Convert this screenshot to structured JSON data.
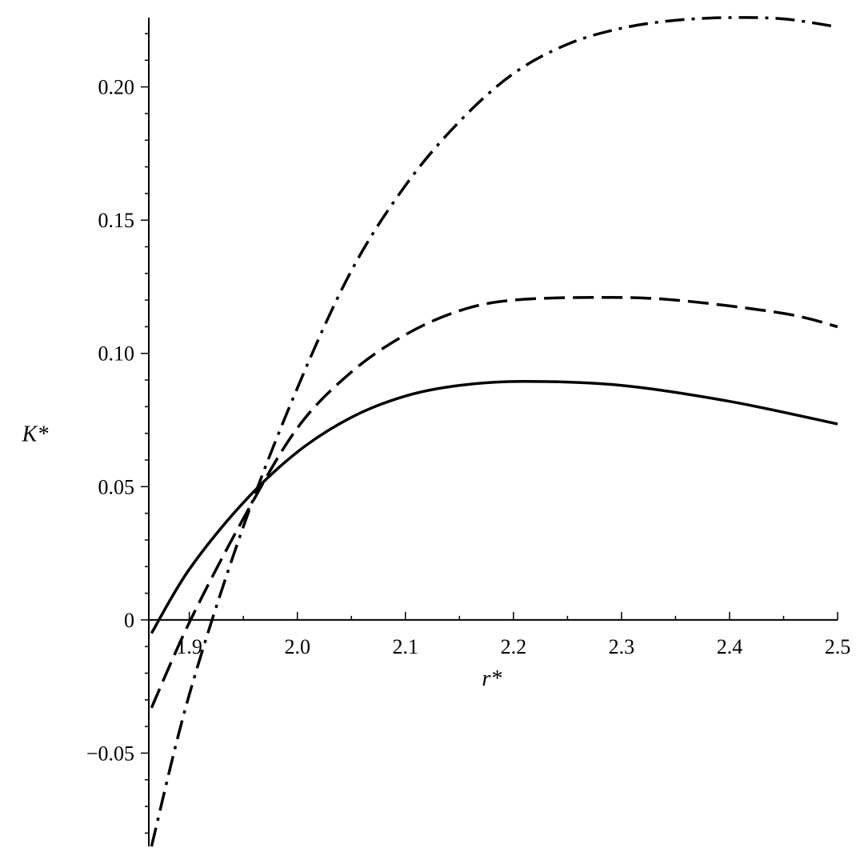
{
  "chart_data": {
    "type": "line",
    "xlabel": "r*",
    "ylabel": "K*",
    "xlim": [
      1.8625,
      2.5
    ],
    "ylim": [
      -0.085,
      0.226
    ],
    "x_ticks": [
      1.9,
      2.0,
      2.1,
      2.2,
      2.3,
      2.4,
      2.5
    ],
    "x_tick_labels": [
      "1.9",
      "2.0",
      "2.1",
      "2.2",
      "2.3",
      "2.4",
      "2.5"
    ],
    "y_ticks": [
      -0.05,
      0,
      0.05,
      0.1,
      0.15,
      0.2
    ],
    "y_tick_labels": [
      "−0.05",
      "0",
      "0.05",
      "0.10",
      "0.15",
      "0.20"
    ],
    "grid": false,
    "legend": "none",
    "series": [
      {
        "style": "solid",
        "x": [
          1.865,
          1.9,
          1.95,
          2.0,
          2.05,
          2.1,
          2.15,
          2.21,
          2.3,
          2.4,
          2.5
        ],
        "y": [
          -0.005,
          0.019,
          0.044,
          0.063,
          0.076,
          0.084,
          0.088,
          0.0895,
          0.088,
          0.082,
          0.0735
        ]
      },
      {
        "style": "dashed",
        "x": [
          1.865,
          1.9,
          1.95,
          2.0,
          2.05,
          2.1,
          2.15,
          2.2,
          2.28,
          2.35,
          2.45,
          2.5
        ],
        "y": [
          -0.033,
          -0.001,
          0.038,
          0.072,
          0.093,
          0.107,
          0.116,
          0.12,
          0.121,
          0.12,
          0.115,
          0.11
        ]
      },
      {
        "style": "dashdot",
        "x": [
          1.865,
          1.9,
          1.95,
          2.0,
          2.05,
          2.1,
          2.15,
          2.2,
          2.25,
          2.3,
          2.35,
          2.4,
          2.45,
          2.5
        ],
        "y": [
          -0.085,
          -0.028,
          0.035,
          0.087,
          0.131,
          0.163,
          0.187,
          0.205,
          0.216,
          0.222,
          0.225,
          0.226,
          0.2255,
          0.2225
        ]
      }
    ]
  }
}
